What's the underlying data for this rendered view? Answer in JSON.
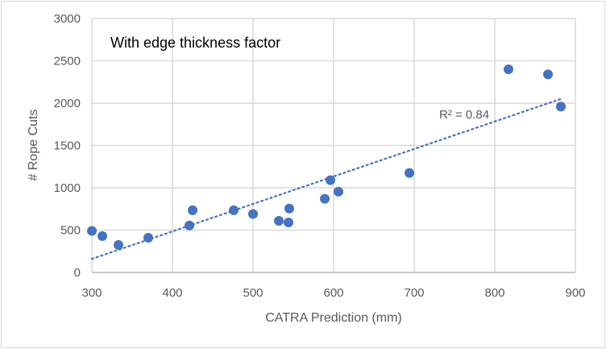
{
  "chart_data": {
    "type": "scatter",
    "title": "With edge thickness factor",
    "xlabel": "CATRA Prediction (mm)",
    "ylabel": "# Rope Cuts",
    "xlim": [
      300,
      900
    ],
    "ylim": [
      0,
      3000
    ],
    "xticks": [
      "300",
      "400",
      "500",
      "600",
      "700",
      "800",
      "900"
    ],
    "yticks": [
      "0",
      "500",
      "1000",
      "1500",
      "2000",
      "2500",
      "3000"
    ],
    "grid": true,
    "marker_color": "#4472c4",
    "trendline": {
      "type": "linear",
      "style": "dotted",
      "color": "#4472c4",
      "x": [
        300,
        882
      ],
      "y": [
        160,
        2050
      ],
      "label": "R² = 0.84"
    },
    "series": [
      {
        "name": "Rope Cuts",
        "x": [
          300,
          313,
          333,
          370,
          421,
          425,
          476,
          500,
          532,
          544,
          545,
          589,
          596,
          606,
          694,
          817,
          866,
          882
        ],
        "y": [
          490,
          430,
          325,
          410,
          555,
          735,
          735,
          690,
          610,
          590,
          755,
          870,
          1090,
          955,
          1175,
          2400,
          2340,
          1960
        ]
      }
    ]
  }
}
